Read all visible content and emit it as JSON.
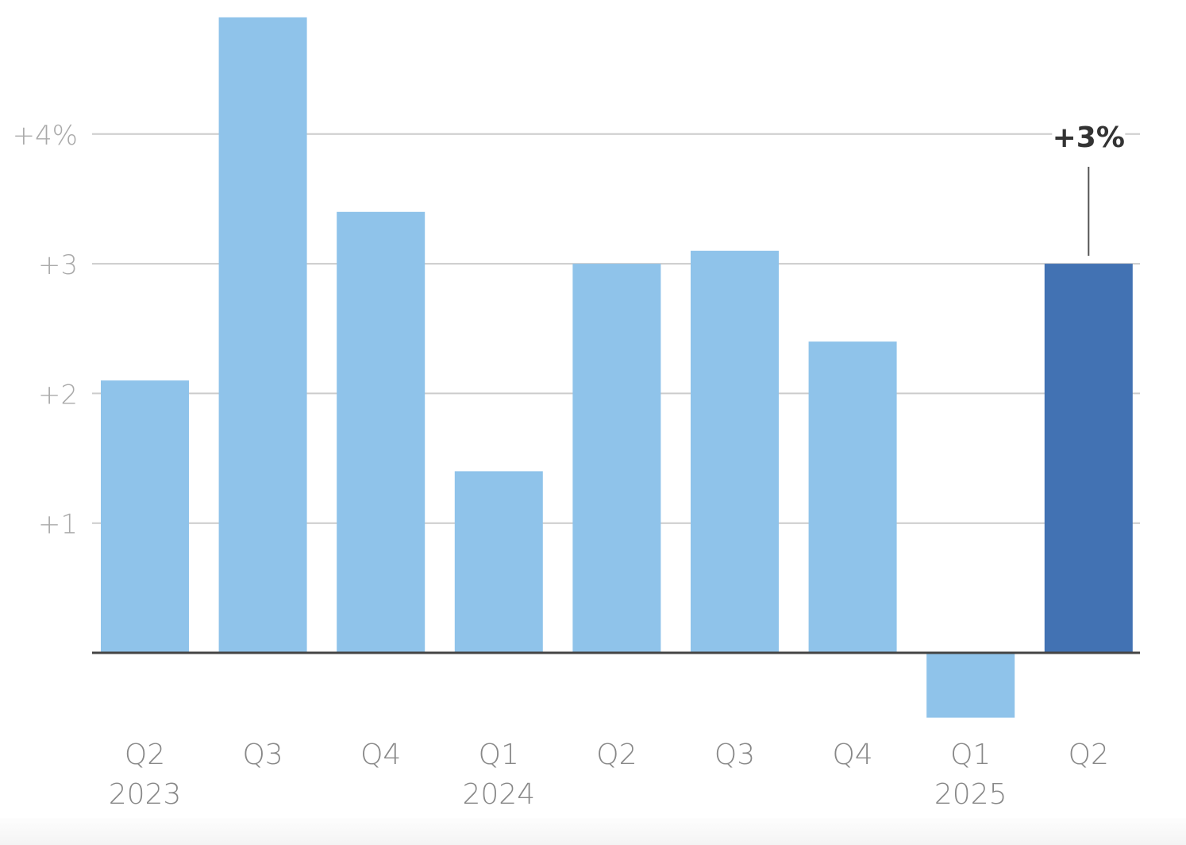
{
  "chart_data": {
    "type": "bar",
    "title": "",
    "xlabel": "",
    "ylabel": "",
    "categories": [
      "Q2 2023",
      "Q3 2023",
      "Q4 2023",
      "Q1 2024",
      "Q2 2024",
      "Q3 2024",
      "Q4 2024",
      "Q1 2025",
      "Q2 2025"
    ],
    "x_tick_labels": [
      {
        "quarter": "Q2",
        "year": "2023"
      },
      {
        "quarter": "Q3",
        "year": ""
      },
      {
        "quarter": "Q4",
        "year": ""
      },
      {
        "quarter": "Q1",
        "year": "2024"
      },
      {
        "quarter": "Q2",
        "year": ""
      },
      {
        "quarter": "Q3",
        "year": ""
      },
      {
        "quarter": "Q4",
        "year": ""
      },
      {
        "quarter": "Q1",
        "year": "2025"
      },
      {
        "quarter": "Q2",
        "year": ""
      }
    ],
    "values": [
      2.1,
      4.9,
      3.4,
      1.4,
      3.0,
      3.1,
      2.4,
      -0.5,
      3.0
    ],
    "highlight_index": 8,
    "annotation": {
      "text": "+3%",
      "index": 8
    },
    "y_ticks": [
      {
        "value": 4,
        "label": "+4%"
      },
      {
        "value": 3,
        "label": "+3"
      },
      {
        "value": 2,
        "label": "+2"
      },
      {
        "value": 1,
        "label": "+1"
      }
    ],
    "ylim": [
      -0.6,
      5.0
    ],
    "grid": true,
    "legend": null,
    "colors": {
      "bar": "#8fc3ea",
      "highlight": "#4272b3",
      "grid": "#cccccc",
      "baseline": "#444444",
      "tick_text": "#888888",
      "y_tick_text": "#aaaaaa",
      "annotation_text": "#333333"
    }
  }
}
